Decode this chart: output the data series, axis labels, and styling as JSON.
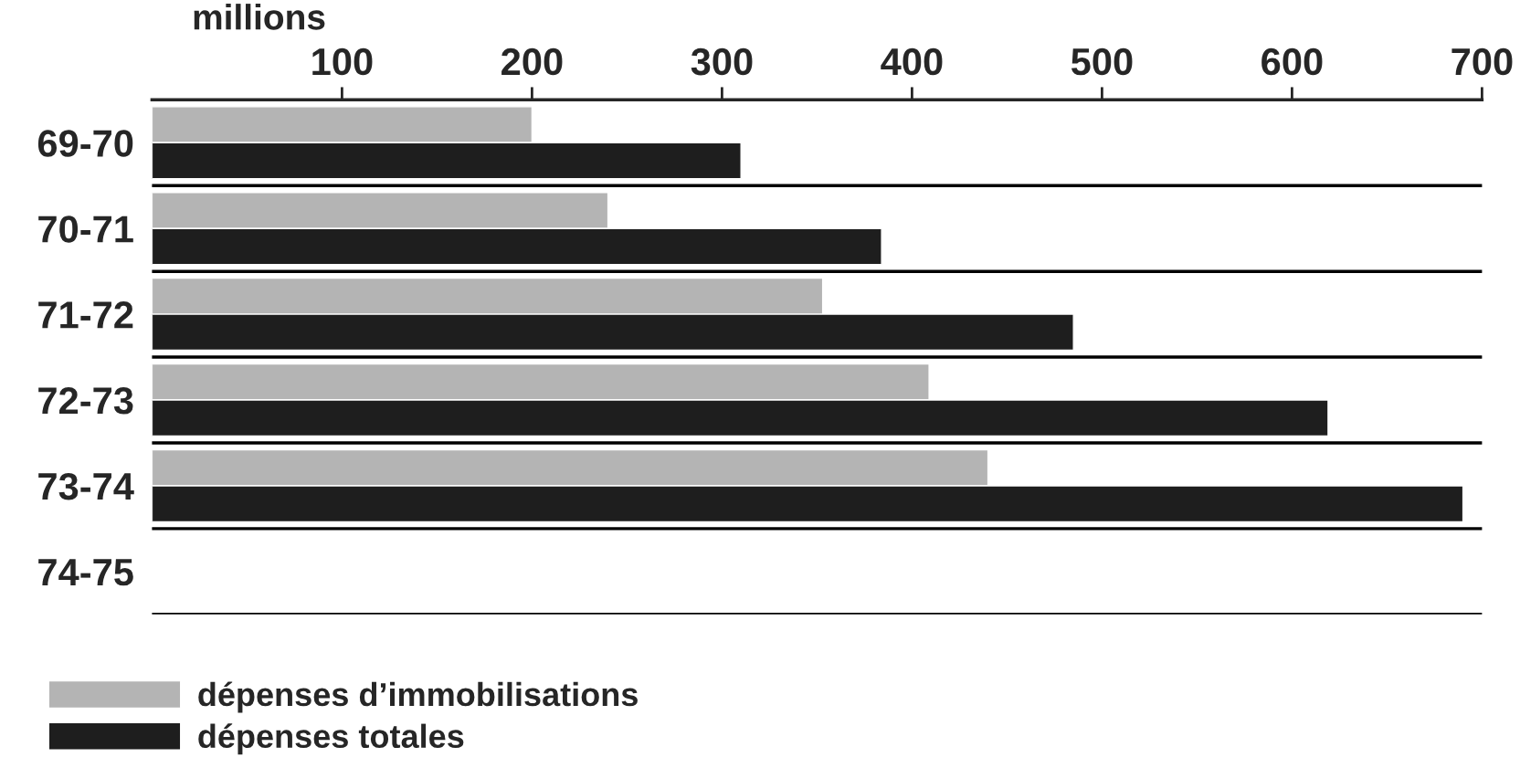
{
  "chart_data": {
    "type": "bar",
    "orientation": "horizontal",
    "xlabel": "millions",
    "categories": [
      "69-70",
      "70-71",
      "71-72",
      "72-73",
      "73-74",
      "74-75"
    ],
    "series": [
      {
        "name": "dépenses d’immobilisations",
        "color": "#b4b4b4",
        "values": [
          200,
          240,
          353,
          409,
          440,
          null
        ]
      },
      {
        "name": "dépenses totales",
        "color": "#1e1e1e",
        "values": [
          310,
          384,
          485,
          619,
          690,
          null
        ]
      }
    ],
    "xlim": [
      0,
      700
    ],
    "xticks": [
      100,
      200,
      300,
      400,
      500,
      600,
      700
    ],
    "grid": "y",
    "legend": "bottom left"
  }
}
